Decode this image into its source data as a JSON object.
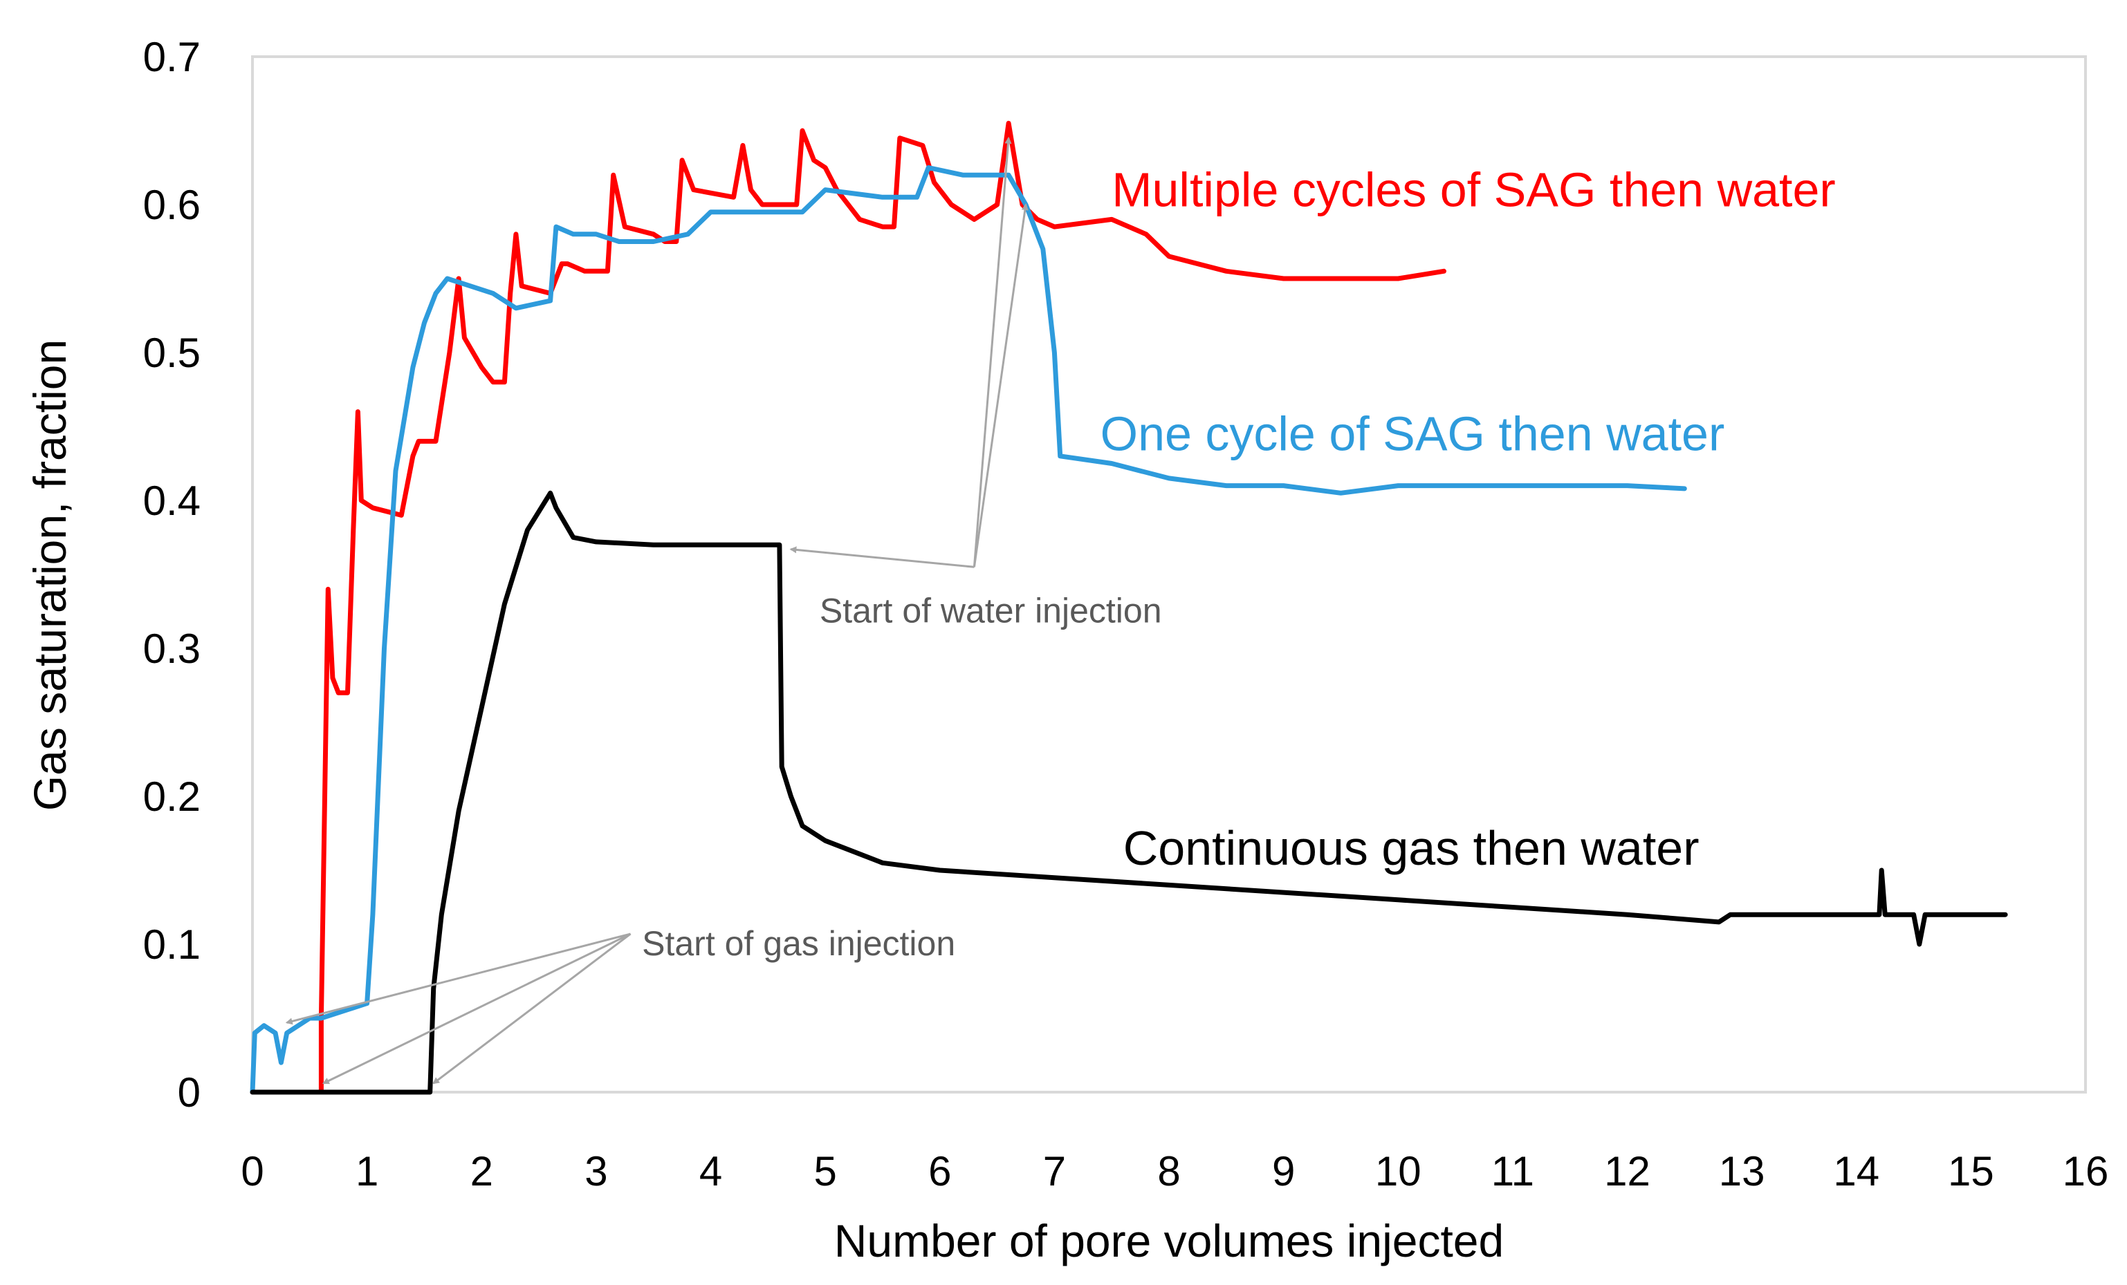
{
  "chart_data": {
    "type": "line",
    "title": "",
    "xlabel": "Number of pore volumes injected",
    "ylabel": "Gas saturation, fraction",
    "xlim": [
      0,
      16
    ],
    "ylim": [
      0,
      0.7
    ],
    "xticks": [
      0,
      1,
      2,
      3,
      4,
      5,
      6,
      7,
      8,
      9,
      10,
      11,
      12,
      13,
      14,
      15,
      16
    ],
    "yticks": [
      0,
      0.1,
      0.2,
      0.3,
      0.4,
      0.5,
      0.6,
      0.7
    ],
    "ytick_labels": [
      "0",
      "0.1",
      "0.2",
      "0.3",
      "0.4",
      "0.5",
      "0.6",
      "0.7"
    ],
    "grid": false,
    "legend": "inline labels",
    "series": [
      {
        "name": "Multiple cycles of SAG then water",
        "color": "#ff0000",
        "points": [
          [
            0,
            0
          ],
          [
            0.6,
            0
          ],
          [
            0.6,
            0.05
          ],
          [
            0.66,
            0.34
          ],
          [
            0.7,
            0.28
          ],
          [
            0.75,
            0.27
          ],
          [
            0.83,
            0.27
          ],
          [
            0.88,
            0.38
          ],
          [
            0.92,
            0.46
          ],
          [
            0.95,
            0.4
          ],
          [
            1.05,
            0.395
          ],
          [
            1.3,
            0.39
          ],
          [
            1.4,
            0.43
          ],
          [
            1.45,
            0.44
          ],
          [
            1.6,
            0.44
          ],
          [
            1.72,
            0.5
          ],
          [
            1.8,
            0.55
          ],
          [
            1.85,
            0.51
          ],
          [
            2.0,
            0.49
          ],
          [
            2.1,
            0.48
          ],
          [
            2.2,
            0.48
          ],
          [
            2.25,
            0.54
          ],
          [
            2.3,
            0.58
          ],
          [
            2.35,
            0.545
          ],
          [
            2.6,
            0.54
          ],
          [
            2.7,
            0.56
          ],
          [
            2.75,
            0.56
          ],
          [
            2.9,
            0.555
          ],
          [
            3.0,
            0.555
          ],
          [
            3.1,
            0.555
          ],
          [
            3.15,
            0.62
          ],
          [
            3.25,
            0.585
          ],
          [
            3.5,
            0.58
          ],
          [
            3.6,
            0.575
          ],
          [
            3.7,
            0.575
          ],
          [
            3.75,
            0.63
          ],
          [
            3.85,
            0.61
          ],
          [
            4.2,
            0.605
          ],
          [
            4.28,
            0.64
          ],
          [
            4.35,
            0.61
          ],
          [
            4.45,
            0.6
          ],
          [
            4.6,
            0.6
          ],
          [
            4.75,
            0.6
          ],
          [
            4.8,
            0.65
          ],
          [
            4.9,
            0.63
          ],
          [
            5.0,
            0.625
          ],
          [
            5.1,
            0.61
          ],
          [
            5.3,
            0.59
          ],
          [
            5.5,
            0.585
          ],
          [
            5.6,
            0.585
          ],
          [
            5.65,
            0.645
          ],
          [
            5.85,
            0.64
          ],
          [
            5.95,
            0.615
          ],
          [
            6.1,
            0.6
          ],
          [
            6.3,
            0.59
          ],
          [
            6.5,
            0.6
          ],
          [
            6.6,
            0.655
          ],
          [
            6.72,
            0.6
          ],
          [
            6.85,
            0.59
          ],
          [
            7.0,
            0.585
          ],
          [
            7.5,
            0.59
          ],
          [
            7.8,
            0.58
          ],
          [
            8.0,
            0.565
          ],
          [
            8.5,
            0.555
          ],
          [
            9.0,
            0.55
          ],
          [
            9.5,
            0.55
          ],
          [
            10.0,
            0.55
          ],
          [
            10.4,
            0.555
          ]
        ]
      },
      {
        "name": "One cycle of SAG then water",
        "color": "#2e9bdc",
        "points": [
          [
            0,
            0
          ],
          [
            0.02,
            0.04
          ],
          [
            0.1,
            0.045
          ],
          [
            0.2,
            0.04
          ],
          [
            0.25,
            0.02
          ],
          [
            0.3,
            0.04
          ],
          [
            0.4,
            0.045
          ],
          [
            0.5,
            0.05
          ],
          [
            0.6,
            0.05
          ],
          [
            0.8,
            0.055
          ],
          [
            1.0,
            0.06
          ],
          [
            1.05,
            0.12
          ],
          [
            1.15,
            0.3
          ],
          [
            1.25,
            0.42
          ],
          [
            1.4,
            0.49
          ],
          [
            1.5,
            0.52
          ],
          [
            1.6,
            0.54
          ],
          [
            1.7,
            0.55
          ],
          [
            1.9,
            0.545
          ],
          [
            2.1,
            0.54
          ],
          [
            2.3,
            0.53
          ],
          [
            2.6,
            0.535
          ],
          [
            2.65,
            0.585
          ],
          [
            2.8,
            0.58
          ],
          [
            3.0,
            0.58
          ],
          [
            3.2,
            0.575
          ],
          [
            3.5,
            0.575
          ],
          [
            3.8,
            0.58
          ],
          [
            4.0,
            0.595
          ],
          [
            4.3,
            0.595
          ],
          [
            4.8,
            0.595
          ],
          [
            5.0,
            0.61
          ],
          [
            5.5,
            0.605
          ],
          [
            5.8,
            0.605
          ],
          [
            5.9,
            0.625
          ],
          [
            6.2,
            0.62
          ],
          [
            6.6,
            0.62
          ],
          [
            6.75,
            0.6
          ],
          [
            6.9,
            0.57
          ],
          [
            7.0,
            0.5
          ],
          [
            7.05,
            0.43
          ],
          [
            7.5,
            0.425
          ],
          [
            8.0,
            0.415
          ],
          [
            8.5,
            0.41
          ],
          [
            9.0,
            0.41
          ],
          [
            9.5,
            0.405
          ],
          [
            10.0,
            0.41
          ],
          [
            11.0,
            0.41
          ],
          [
            12.0,
            0.41
          ],
          [
            12.5,
            0.408
          ]
        ]
      },
      {
        "name": "Continuous gas then water",
        "color": "#000000",
        "points": [
          [
            0,
            0
          ],
          [
            1.55,
            0
          ],
          [
            1.58,
            0.07
          ],
          [
            1.65,
            0.12
          ],
          [
            1.8,
            0.19
          ],
          [
            2.0,
            0.26
          ],
          [
            2.2,
            0.33
          ],
          [
            2.4,
            0.38
          ],
          [
            2.6,
            0.405
          ],
          [
            2.65,
            0.395
          ],
          [
            2.8,
            0.375
          ],
          [
            3.0,
            0.372
          ],
          [
            3.5,
            0.37
          ],
          [
            4.0,
            0.37
          ],
          [
            4.5,
            0.37
          ],
          [
            4.6,
            0.37
          ],
          [
            4.62,
            0.22
          ],
          [
            4.7,
            0.2
          ],
          [
            4.8,
            0.18
          ],
          [
            5.0,
            0.17
          ],
          [
            5.5,
            0.155
          ],
          [
            6.0,
            0.15
          ],
          [
            7.0,
            0.145
          ],
          [
            8.0,
            0.14
          ],
          [
            9.0,
            0.135
          ],
          [
            10.0,
            0.13
          ],
          [
            11.0,
            0.125
          ],
          [
            12.0,
            0.12
          ],
          [
            12.8,
            0.115
          ],
          [
            12.9,
            0.12
          ],
          [
            13.2,
            0.12
          ],
          [
            14.0,
            0.12
          ],
          [
            14.2,
            0.12
          ],
          [
            14.22,
            0.15
          ],
          [
            14.25,
            0.12
          ],
          [
            14.5,
            0.12
          ],
          [
            14.55,
            0.1
          ],
          [
            14.6,
            0.12
          ],
          [
            15.0,
            0.12
          ],
          [
            15.3,
            0.12
          ]
        ]
      }
    ],
    "series_labels": [
      {
        "text": "Multiple cycles of SAG then water",
        "color": "#ff0000",
        "x": 7.5,
        "y": 0.61
      },
      {
        "text": "One cycle of SAG then water",
        "color": "#2e9bdc",
        "x": 7.4,
        "y": 0.445
      },
      {
        "text": "Continuous gas then water",
        "color": "#000000",
        "x": 7.6,
        "y": 0.165
      }
    ],
    "annotations": [
      {
        "text": "Start of water injection",
        "x": 4.95,
        "y": 0.325,
        "origin": [
          6.3,
          0.355
        ],
        "targets": [
          [
            4.7,
            0.367
          ],
          [
            6.6,
            0.645
          ],
          [
            6.75,
            0.6
          ]
        ]
      },
      {
        "text": "Start of gas injection",
        "x": 3.4,
        "y": 0.1,
        "origin": [
          3.3,
          0.107
        ],
        "targets": [
          [
            0.3,
            0.047
          ],
          [
            0.62,
            0.006
          ],
          [
            1.58,
            0.006
          ]
        ]
      }
    ]
  }
}
